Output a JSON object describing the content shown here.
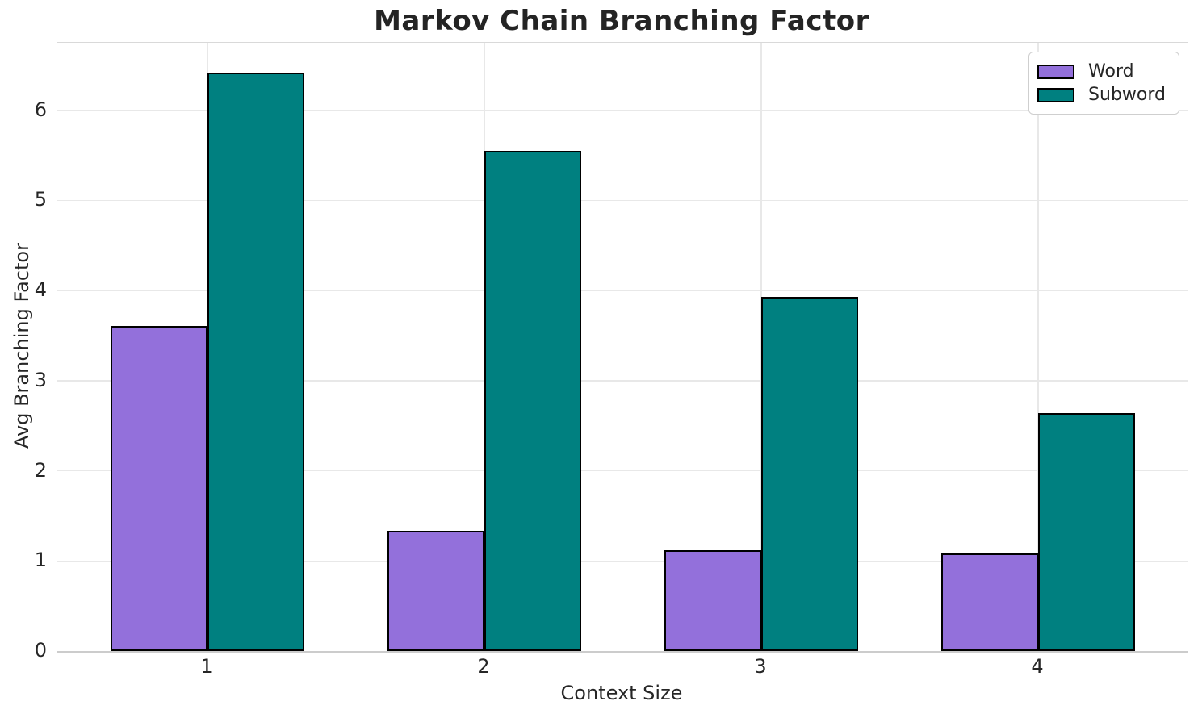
{
  "chart_data": {
    "type": "bar",
    "title": "Markov Chain Branching Factor",
    "xlabel": "Context Size",
    "ylabel": "Avg Branching Factor",
    "categories": [
      "1",
      "2",
      "3",
      "4"
    ],
    "series": [
      {
        "name": "Word",
        "color": "#9370DB",
        "values": [
          3.61,
          1.33,
          1.12,
          1.08
        ]
      },
      {
        "name": "Subword",
        "color": "#008080",
        "values": [
          6.42,
          5.55,
          3.93,
          2.64
        ]
      }
    ],
    "bar_edge_color": "#000000",
    "yticks": [
      0,
      1,
      2,
      3,
      4,
      5,
      6
    ],
    "ylim": [
      0,
      6.75
    ],
    "grid": true,
    "legend_position": "upper right",
    "colors": {
      "grid": "#e8e8e8",
      "spine": "#d9d9d9",
      "text": "#262626"
    }
  }
}
